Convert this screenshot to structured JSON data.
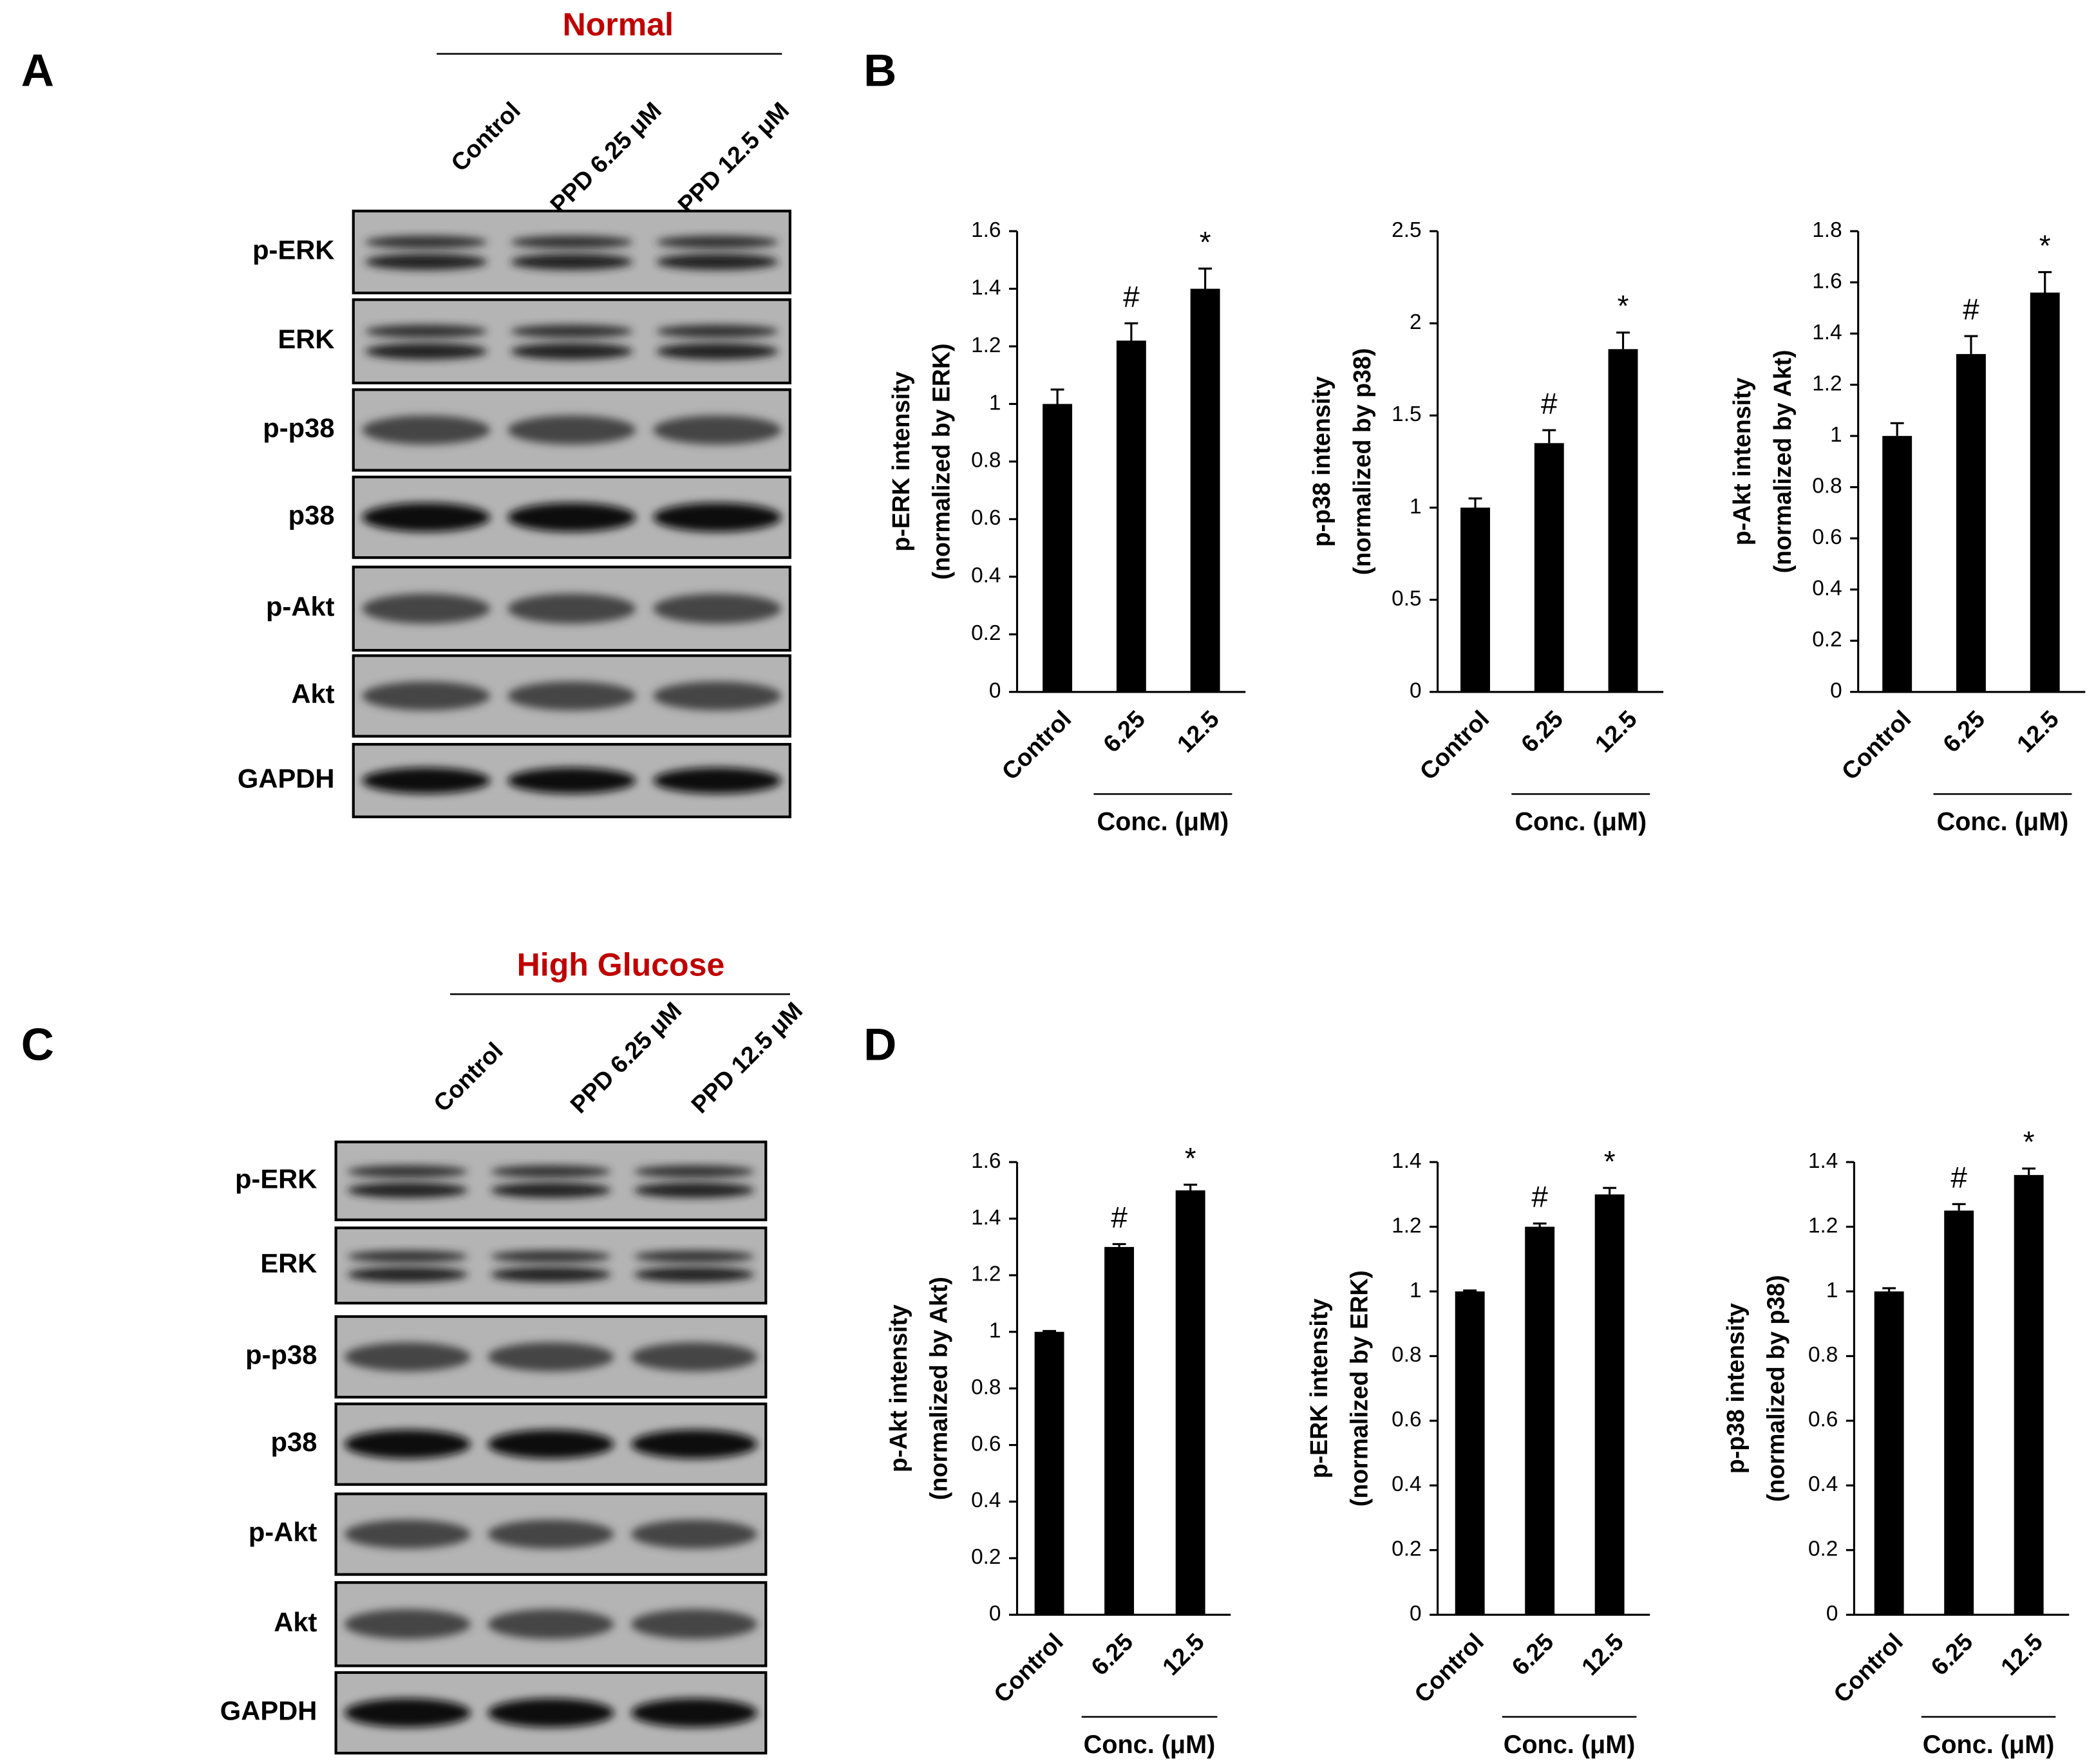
{
  "panel_labels": [
    "A",
    "B",
    "C",
    "D"
  ],
  "blots": [
    {
      "condition": "Normal",
      "lanes": [
        "Control",
        "PPD 6.25 μM",
        "PPD 12.5 μM"
      ],
      "proteins": [
        "p-ERK",
        "ERK",
        "p-p38",
        "p38",
        "p-Akt",
        "Akt",
        "GAPDH"
      ]
    },
    {
      "condition": "High Glucose",
      "lanes": [
        "Control",
        "PPD 6.25 μM",
        "PPD 12.5 μM"
      ],
      "proteins": [
        "p-ERK",
        "ERK",
        "p-p38",
        "p38",
        "p-Akt",
        "Akt",
        "GAPDH"
      ]
    }
  ],
  "chart_data": [
    {
      "type": "bar",
      "ylabel": [
        "p-ERK intensity",
        "(normalized by ERK)"
      ],
      "xlabel": "Conc. (μM)",
      "categories": [
        "Control",
        "6.25",
        "12.5"
      ],
      "values": [
        1.0,
        1.22,
        1.4
      ],
      "errors": [
        0.05,
        0.06,
        0.07
      ],
      "significance": [
        null,
        "#",
        "*"
      ],
      "color": "#000000",
      "ylim": [
        0,
        1.6
      ],
      "yticks": [
        0,
        0.2,
        0.4,
        0.6,
        0.8,
        1,
        1.2,
        1.4,
        1.6
      ]
    },
    {
      "type": "bar",
      "ylabel": [
        "p-p38 intensity",
        "(normalized by p38)"
      ],
      "xlabel": "Conc. (μM)",
      "categories": [
        "Control",
        "6.25",
        "12.5"
      ],
      "values": [
        1.0,
        1.35,
        1.86
      ],
      "errors": [
        0.05,
        0.07,
        0.09
      ],
      "significance": [
        null,
        "#",
        "*"
      ],
      "color": "#000000",
      "ylim": [
        0,
        2.5
      ],
      "yticks": [
        0,
        0.5,
        1,
        1.5,
        2,
        2.5
      ]
    },
    {
      "type": "bar",
      "ylabel": [
        "p-Akt intensity",
        "(normalized by Akt)"
      ],
      "xlabel": "Conc. (μM)",
      "categories": [
        "Control",
        "6.25",
        "12.5"
      ],
      "values": [
        1.0,
        1.32,
        1.56
      ],
      "errors": [
        0.05,
        0.07,
        0.08
      ],
      "significance": [
        null,
        "#",
        "*"
      ],
      "color": "#000000",
      "ylim": [
        0,
        1.8
      ],
      "yticks": [
        0,
        0.2,
        0.4,
        0.6,
        0.8,
        1,
        1.2,
        1.4,
        1.6,
        1.8
      ]
    },
    {
      "type": "bar",
      "ylabel": [
        "p-Akt intensity",
        "(normalized by Akt)"
      ],
      "xlabel": "Conc. (μM)",
      "categories": [
        "Control",
        "6.25",
        "12.5"
      ],
      "values": [
        1.0,
        1.3,
        1.5
      ],
      "errors": [
        0.003,
        0.01,
        0.02
      ],
      "significance": [
        null,
        "#",
        "*"
      ],
      "color": "#000000",
      "ylim": [
        0,
        1.6
      ],
      "yticks": [
        0,
        0.2,
        0.4,
        0.6,
        0.8,
        1,
        1.2,
        1.4,
        1.6
      ]
    },
    {
      "type": "bar",
      "ylabel": [
        "p-ERK intensity",
        "(normalized by ERK)"
      ],
      "xlabel": "Conc. (μM)",
      "categories": [
        "Control",
        "6.25",
        "12.5"
      ],
      "values": [
        1.0,
        1.2,
        1.3
      ],
      "errors": [
        0.003,
        0.01,
        0.02
      ],
      "significance": [
        null,
        "#",
        "*"
      ],
      "color": "#000000",
      "ylim": [
        0,
        1.4
      ],
      "yticks": [
        0,
        0.2,
        0.4,
        0.6,
        0.8,
        1,
        1.2,
        1.4
      ]
    },
    {
      "type": "bar",
      "ylabel": [
        "p-p38 intensity",
        "(normalized by p38)"
      ],
      "xlabel": "Conc. (μM)",
      "categories": [
        "Control",
        "6.25",
        "12.5"
      ],
      "values": [
        1.0,
        1.25,
        1.36
      ],
      "errors": [
        0.01,
        0.02,
        0.02
      ],
      "significance": [
        null,
        "#",
        "*"
      ],
      "color": "#000000",
      "ylim": [
        0,
        1.4
      ],
      "yticks": [
        0,
        0.2,
        0.4,
        0.6,
        0.8,
        1,
        1.2,
        1.4
      ]
    }
  ]
}
